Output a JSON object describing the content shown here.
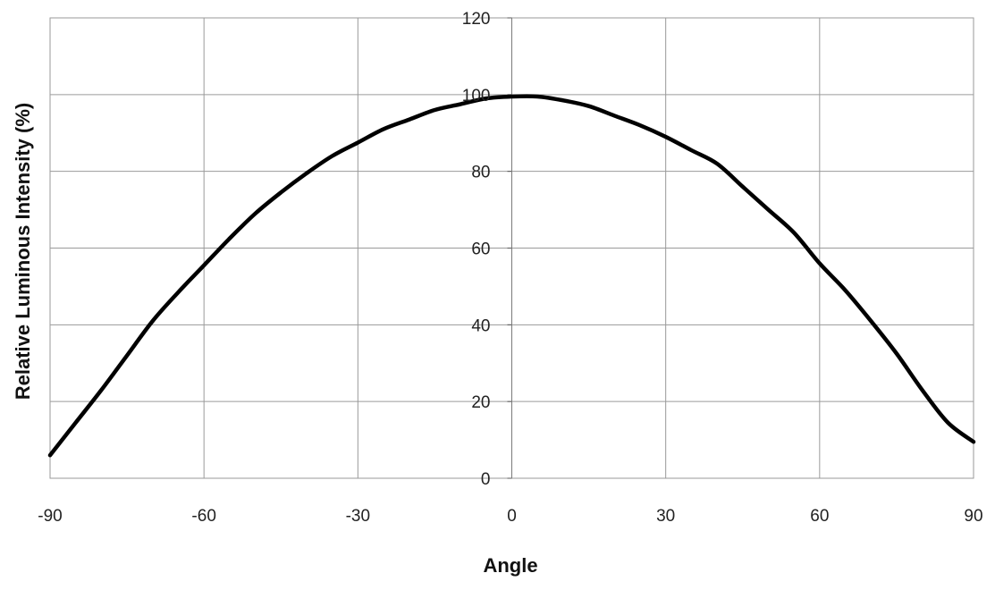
{
  "chart_data": {
    "type": "line",
    "title": "",
    "xlabel": "Angle",
    "ylabel": "Relative Luminous Intensity (%)",
    "xlim": [
      -90,
      90
    ],
    "ylim": [
      0,
      120
    ],
    "x_ticks": [
      -90,
      -60,
      -30,
      0,
      30,
      60,
      90
    ],
    "y_ticks": [
      0,
      20,
      40,
      60,
      80,
      100,
      120
    ],
    "x_tick_labels": [
      "-90",
      "-60",
      "-30",
      "0",
      "30",
      "60",
      "90"
    ],
    "y_tick_labels": [
      "0",
      "20",
      "40",
      "60",
      "80",
      "100",
      "120"
    ],
    "grid": true,
    "legend": "none",
    "series": [
      {
        "color": "#000000",
        "x": [
          -90,
          -85,
          -80,
          -75,
          -70,
          -65,
          -60,
          -55,
          -50,
          -45,
          -40,
          -35,
          -30,
          -25,
          -20,
          -15,
          -10,
          -5,
          0,
          5,
          10,
          15,
          20,
          25,
          30,
          35,
          40,
          45,
          50,
          55,
          60,
          65,
          70,
          75,
          80,
          85,
          90
        ],
        "y": [
          6,
          14.5,
          23,
          32,
          41,
          48.5,
          55.5,
          62.5,
          69,
          74.5,
          79.5,
          84,
          87.5,
          91,
          93.5,
          96,
          97.5,
          99,
          99.5,
          99.5,
          98.5,
          97,
          94.5,
          92,
          89,
          85.5,
          82,
          76,
          70,
          64,
          56,
          49,
          41,
          32.5,
          23,
          14.5,
          9.5
        ]
      }
    ]
  }
}
